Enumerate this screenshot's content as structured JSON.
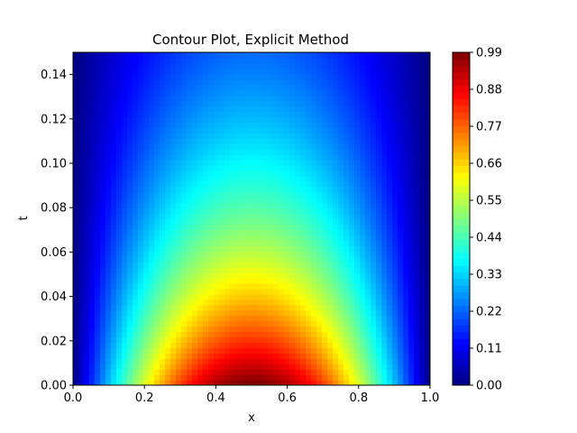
{
  "chart_data": {
    "type": "heatmap",
    "title": "Contour Plot, Explicit Method",
    "xlabel": "x",
    "ylabel": "t",
    "xlim": [
      0.0,
      1.0
    ],
    "ylim": [
      0.0,
      0.15
    ],
    "x_ticks": [
      "0.0",
      "0.2",
      "0.4",
      "0.6",
      "0.8",
      "1.0"
    ],
    "y_ticks": [
      "0.00",
      "0.02",
      "0.04",
      "0.06",
      "0.08",
      "0.10",
      "0.12",
      "0.14"
    ],
    "colorbar": {
      "colormap": "jet",
      "range": [
        0.0,
        0.99
      ],
      "ticks": [
        "0.00",
        "0.11",
        "0.22",
        "0.33",
        "0.44",
        "0.55",
        "0.66",
        "0.77",
        "0.88",
        "0.99"
      ]
    },
    "z_peak": 1.0
  }
}
